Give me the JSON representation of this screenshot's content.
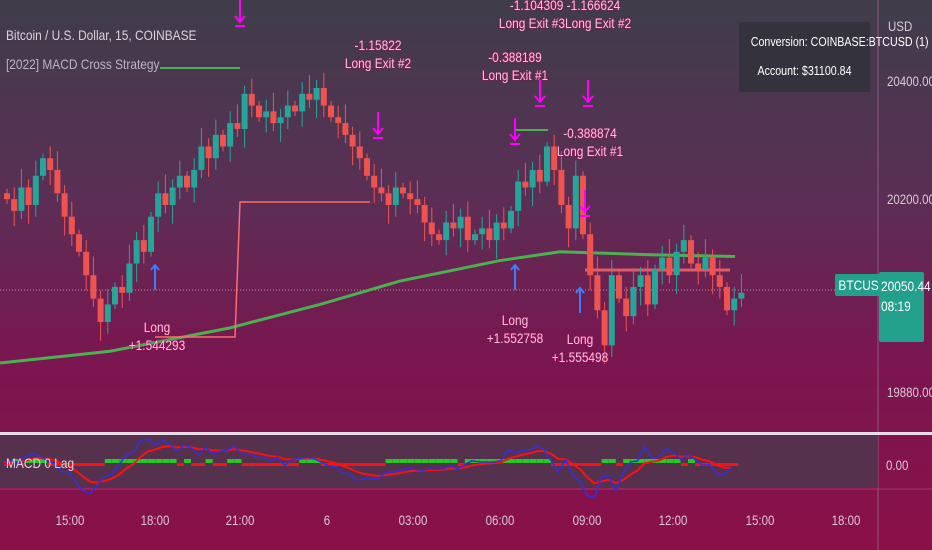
{
  "header": {
    "symbol_title": "Bitcoin / U.S. Dollar, 15, COINBASE",
    "strategy_name": "[2022] MACD Cross Strategy"
  },
  "info_box": {
    "conversion": "Conversion: COINBASE:BTCUSD (1)",
    "account": "Account: $31100.84"
  },
  "price_axis": {
    "currency": "USD",
    "ticks": [
      "20400.00",
      "20200.00",
      "19880.00"
    ],
    "last_price": "20050.44",
    "countdown": "08:19",
    "symbol_tag": "BTCUSD"
  },
  "macd_pane": {
    "name": "MACD 0 Lag",
    "tick": "0.00"
  },
  "time_axis": [
    "15:00",
    "18:00",
    "21:00",
    "6",
    "03:00",
    "06:00",
    "09:00",
    "12:00",
    "15:00",
    "18:00"
  ],
  "annotations": [
    {
      "lines": [
        "Long",
        "+1.544293"
      ]
    },
    {
      "lines": [
        "-1.15822",
        "Long Exit #2"
      ]
    },
    {
      "lines": [
        "-0.388189",
        "Long Exit #1"
      ]
    },
    {
      "lines": [
        "-1.104309 -1.166624",
        "Long Exit #3Long Exit #2"
      ]
    },
    {
      "lines": [
        "-0.388874",
        "Long Exit #1"
      ]
    },
    {
      "lines": [
        "Long",
        "+1.552758"
      ]
    },
    {
      "lines": [
        "Long",
        "+1.555498"
      ]
    }
  ],
  "colors": {
    "up": "#26a69a",
    "down": "#ef5350",
    "ma": "#4caf50",
    "position": "#ff6b6b",
    "signal": "#ff00ff",
    "macd": "#3030e0",
    "signal_line": "#ff1010",
    "hist": "#22cc22"
  },
  "chart_data": {
    "type": "candlestick",
    "ylim": [
      19880,
      20400
    ],
    "closes": [
      20210,
      20190,
      20230,
      20200,
      20250,
      20280,
      20260,
      20220,
      20180,
      20150,
      20120,
      20080,
      20040,
      20000,
      20030,
      20060,
      20050,
      20100,
      20140,
      20120,
      20180,
      20220,
      20200,
      20230,
      20250,
      20230,
      20260,
      20300,
      20280,
      20320,
      20300,
      20340,
      20330,
      20390,
      20370,
      20350,
      20360,
      20340,
      20350,
      20370,
      20360,
      20390,
      20380,
      20400,
      20370,
      20350,
      20340,
      20320,
      20300,
      20280,
      20250,
      20230,
      20220,
      20200,
      20230,
      20220,
      20210,
      20200,
      20170,
      20150,
      20140,
      20170,
      20160,
      20180,
      20140,
      20150,
      20160,
      20140,
      20170,
      20160,
      20190,
      20240,
      20230,
      20260,
      20240,
      20300,
      20260,
      20200,
      20160,
      20250,
      20150,
      20080,
      20020,
      19960,
      20080,
      20040,
      20010,
      20060,
      20080,
      20030,
      20090,
      20110,
      20080,
      20120,
      20140,
      20100,
      20090,
      20110,
      20080,
      20060,
      20020,
      20040,
      20050
    ],
    "moving_average": [
      19930,
      19950,
      19990,
      20030,
      20070,
      20105,
      20120,
      20115,
      20112
    ]
  }
}
